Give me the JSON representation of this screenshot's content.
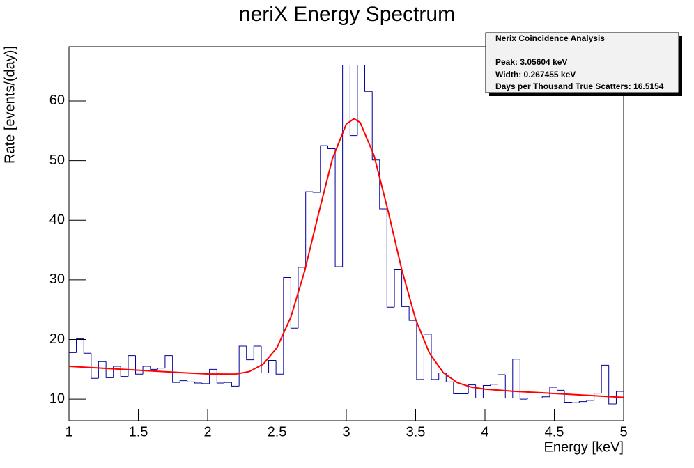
{
  "chart_data": {
    "type": "histogram",
    "title": "neriX Energy Spectrum",
    "x_label": "Energy [keV]",
    "y_label": "Rate [events/(day)]",
    "annotations": [
      "Nerix Coincidence Analysis",
      "Peak: 3.05604 keV",
      "Width: 0.267455 keV",
      "Days per Thousand True Scatters: 16.5154"
    ],
    "bins": [
      1,
      1.053,
      1.107,
      1.16,
      1.213,
      1.267,
      1.32,
      1.373,
      1.427,
      1.48,
      1.533,
      1.587,
      1.64,
      1.693,
      1.747,
      1.8,
      1.853,
      1.907,
      1.96,
      2.013,
      2.067,
      2.12,
      2.173,
      2.227,
      2.28,
      2.333,
      2.387,
      2.44,
      2.493,
      2.547,
      2.6,
      2.653,
      2.707,
      2.76,
      2.813,
      2.867,
      2.92,
      2.973,
      3.027,
      3.08,
      3.133,
      3.187,
      3.24,
      3.293,
      3.347,
      3.4,
      3.453,
      3.507,
      3.56,
      3.613,
      3.667,
      3.72,
      3.773,
      3.827,
      3.88,
      3.933,
      3.987,
      4.04,
      4.093,
      4.147,
      4.2,
      4.253,
      4.307,
      4.36,
      4.413,
      4.467,
      4.52,
      4.573,
      4.627,
      4.68,
      4.733,
      4.787,
      4.84,
      4.893,
      4.947,
      5
    ],
    "values": [
      17.8,
      20.1,
      17.7,
      13.5,
      16.3,
      13.6,
      15.5,
      13.8,
      17.3,
      14.2,
      15.5,
      15.0,
      15.2,
      17.3,
      12.8,
      13.1,
      12.9,
      12.7,
      12.6,
      15.0,
      12.7,
      12.8,
      12.2,
      18.9,
      16.6,
      18.9,
      14.4,
      16.5,
      14.2,
      30.4,
      21.9,
      32.1,
      44.8,
      44.7,
      52.5,
      52.0,
      32.2,
      66.0,
      54.2,
      66.0,
      61.6,
      50.1,
      41.9,
      25.4,
      31.8,
      25.5,
      23.2,
      13.3,
      20.9,
      13.3,
      14.4,
      12.9,
      10.9,
      10.9,
      12.4,
      10.2,
      12.3,
      12.5,
      14.1,
      10.2,
      16.7,
      10.0,
      10.2,
      10.2,
      10.4,
      12.0,
      11.5,
      9.5,
      9.4,
      9.6,
      9.8,
      11.0,
      15.7,
      9.2,
      11.3
    ],
    "color": "#000099",
    "fit": {
      "color": "#ff0000",
      "x": [
        1.0,
        1.2,
        1.4,
        1.6,
        1.8,
        2.0,
        2.2,
        2.3,
        2.4,
        2.5,
        2.6,
        2.7,
        2.8,
        2.9,
        3.0,
        3.056,
        3.1,
        3.2,
        3.3,
        3.4,
        3.5,
        3.6,
        3.7,
        3.8,
        3.9,
        4.0,
        4.2,
        4.4,
        4.6,
        4.8,
        5.0
      ],
      "y": [
        15.5,
        15.24,
        14.98,
        14.72,
        14.46,
        14.22,
        14.2,
        14.62,
        15.86,
        18.64,
        23.75,
        31.51,
        41.12,
        50.32,
        56.13,
        57.03,
        56.38,
        50.87,
        41.67,
        31.71,
        23.38,
        17.7,
        14.42,
        12.78,
        12.03,
        11.68,
        11.34,
        11.08,
        10.82,
        10.56,
        10.3
      ]
    },
    "xlim": [
      1,
      5
    ],
    "xticks": [
      1,
      1.5,
      2,
      2.5,
      3,
      3.5,
      4,
      4.5,
      5
    ],
    "ylim": [
      6.4,
      69.1
    ],
    "yticks": [
      10,
      20,
      30,
      40,
      50,
      60
    ]
  }
}
